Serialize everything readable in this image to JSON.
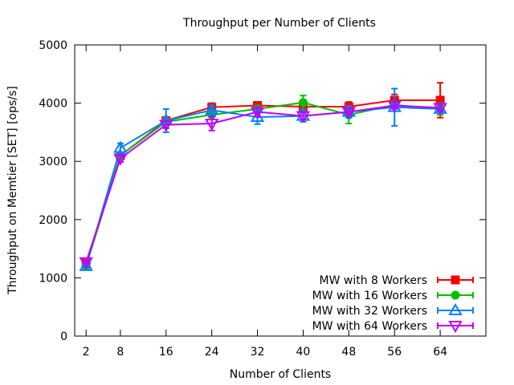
{
  "chart_data": {
    "type": "line",
    "title": "Throughput per Number of Clients",
    "xlabel": "Number of Clients",
    "ylabel": "Throughput on Memtier [SET] [ops/s]",
    "x": [
      2,
      8,
      16,
      24,
      32,
      40,
      48,
      56,
      64
    ],
    "xlim": [
      0,
      72
    ],
    "ylim": [
      0,
      5000
    ],
    "xticks": [
      "2",
      "8",
      "16",
      "24",
      "32",
      "40",
      "48",
      "56",
      "64"
    ],
    "yticks": [
      "0",
      "1000",
      "2000",
      "3000",
      "4000",
      "5000"
    ],
    "grid": false,
    "legend_position": "bottom-right",
    "series": [
      {
        "name": "MW with 8 Workers",
        "color": "#ff0000",
        "marker": "square-filled",
        "values": [
          1250,
          3100,
          3700,
          3930,
          3960,
          3940,
          3940,
          4050,
          4050
        ],
        "err": [
          20,
          60,
          50,
          70,
          60,
          80,
          80,
          100,
          300
        ]
      },
      {
        "name": "MW with 16 Workers",
        "color": "#00c000",
        "marker": "circle-filled",
        "values": [
          1200,
          3100,
          3680,
          3800,
          3900,
          4010,
          3800,
          3970,
          3900
        ],
        "err": [
          20,
          60,
          60,
          80,
          60,
          120,
          150,
          60,
          100
        ]
      },
      {
        "name": "MW with 32 Workers",
        "color": "#0080ff",
        "marker": "triangle-up-open",
        "values": [
          1200,
          3230,
          3700,
          3880,
          3760,
          3780,
          3850,
          3930,
          3900
        ],
        "err": [
          20,
          80,
          200,
          80,
          120,
          100,
          100,
          320,
          60
        ]
      },
      {
        "name": "MW with 64 Workers",
        "color": "#c000ff",
        "marker": "triangle-down-open",
        "values": [
          1270,
          3050,
          3630,
          3650,
          3850,
          3780,
          3850,
          3960,
          3920
        ],
        "err": [
          20,
          60,
          60,
          120,
          80,
          60,
          60,
          60,
          60
        ]
      }
    ]
  }
}
